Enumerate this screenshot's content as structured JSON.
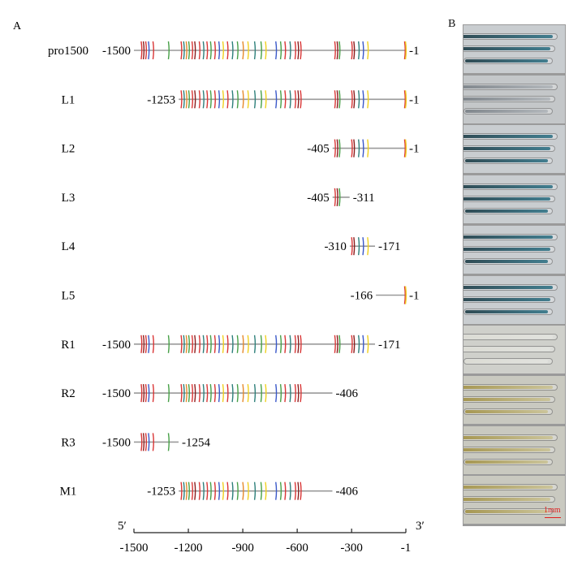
{
  "panels": {
    "a_label": "A",
    "b_label": "B"
  },
  "colors": {
    "red": "#d93535",
    "dark_red": "#8b1d1d",
    "green": "#47a047",
    "teal": "#2d7f7a",
    "blue": "#3a58c9",
    "yellow": "#f0d020",
    "orange": "#e58a2a",
    "line": "#9a9a9a"
  },
  "constructs": [
    {
      "name": "pro1500",
      "start": -1500,
      "end": -1,
      "start_label": "-1500",
      "end_label": "-1"
    },
    {
      "name": "L1",
      "start": -1253,
      "end": -1,
      "start_label": "-1253",
      "end_label": "-1"
    },
    {
      "name": "L2",
      "start": -405,
      "end": -1,
      "start_label": "-405",
      "end_label": "-1"
    },
    {
      "name": "L3",
      "start": -405,
      "end": -311,
      "start_label": "-405",
      "end_label": "-311"
    },
    {
      "name": "L4",
      "start": -310,
      "end": -171,
      "start_label": "-310",
      "end_label": "-171"
    },
    {
      "name": "L5",
      "start": -166,
      "end": -1,
      "start_label": "-166",
      "end_label": "-1"
    },
    {
      "name": "R1",
      "start": -1500,
      "end": -171,
      "start_label": "-1500",
      "end_label": "-171"
    },
    {
      "name": "R2",
      "start": -1500,
      "end": -406,
      "start_label": "-1500",
      "end_label": "-406"
    },
    {
      "name": "R3",
      "start": -1500,
      "end": -1254,
      "start_label": "-1500",
      "end_label": "-1254"
    },
    {
      "name": "M1",
      "start": -1253,
      "end": -406,
      "start_label": "-1253",
      "end_label": "-406"
    }
  ],
  "elements": [
    {
      "pos": -1460,
      "color": "red"
    },
    {
      "pos": -1448,
      "color": "dark_red"
    },
    {
      "pos": -1435,
      "color": "red"
    },
    {
      "pos": -1420,
      "color": "blue"
    },
    {
      "pos": -1395,
      "color": "red"
    },
    {
      "pos": -1310,
      "color": "green"
    },
    {
      "pos": -1240,
      "color": "red"
    },
    {
      "pos": -1226,
      "color": "teal"
    },
    {
      "pos": -1212,
      "color": "orange"
    },
    {
      "pos": -1198,
      "color": "green"
    },
    {
      "pos": -1180,
      "color": "red"
    },
    {
      "pos": -1165,
      "color": "dark_red"
    },
    {
      "pos": -1140,
      "color": "red"
    },
    {
      "pos": -1118,
      "color": "teal"
    },
    {
      "pos": -1098,
      "color": "red"
    },
    {
      "pos": -1078,
      "color": "green"
    },
    {
      "pos": -1055,
      "color": "red"
    },
    {
      "pos": -1032,
      "color": "blue"
    },
    {
      "pos": -1010,
      "color": "yellow"
    },
    {
      "pos": -985,
      "color": "red"
    },
    {
      "pos": -958,
      "color": "teal"
    },
    {
      "pos": -930,
      "color": "green"
    },
    {
      "pos": -900,
      "color": "orange"
    },
    {
      "pos": -872,
      "color": "yellow"
    },
    {
      "pos": -835,
      "color": "teal"
    },
    {
      "pos": -800,
      "color": "green"
    },
    {
      "pos": -775,
      "color": "yellow"
    },
    {
      "pos": -718,
      "color": "blue"
    },
    {
      "pos": -692,
      "color": "green"
    },
    {
      "pos": -668,
      "color": "red"
    },
    {
      "pos": -640,
      "color": "teal"
    },
    {
      "pos": -612,
      "color": "red"
    },
    {
      "pos": -596,
      "color": "dark_red"
    },
    {
      "pos": -582,
      "color": "red"
    },
    {
      "pos": -393,
      "color": "red"
    },
    {
      "pos": -380,
      "color": "dark_red"
    },
    {
      "pos": -368,
      "color": "green"
    },
    {
      "pos": -300,
      "color": "red"
    },
    {
      "pos": -288,
      "color": "dark_red"
    },
    {
      "pos": -262,
      "color": "teal"
    },
    {
      "pos": -238,
      "color": "blue"
    },
    {
      "pos": -212,
      "color": "yellow"
    },
    {
      "pos": -8,
      "color": "red"
    },
    {
      "pos": -3,
      "color": "yellow"
    }
  ],
  "axis": {
    "five_prime": "5′",
    "three_prime": "3′",
    "ticks": [
      {
        "value": -1500,
        "label": "-1500"
      },
      {
        "value": -1200,
        "label": "-1200"
      },
      {
        "value": -900,
        "label": "-900"
      },
      {
        "value": -600,
        "label": "-600"
      },
      {
        "value": -300,
        "label": "-300"
      },
      {
        "value": -1,
        "label": "-1"
      }
    ]
  },
  "photos": [
    {
      "stain": "blue"
    },
    {
      "stain": "faint"
    },
    {
      "stain": "blue"
    },
    {
      "stain": "blue"
    },
    {
      "stain": "blue"
    },
    {
      "stain": "blue"
    },
    {
      "stain": "none"
    },
    {
      "stain": "yellow"
    },
    {
      "stain": "yellow"
    },
    {
      "stain": "yellow"
    }
  ],
  "scale_bar_label": "1mm"
}
